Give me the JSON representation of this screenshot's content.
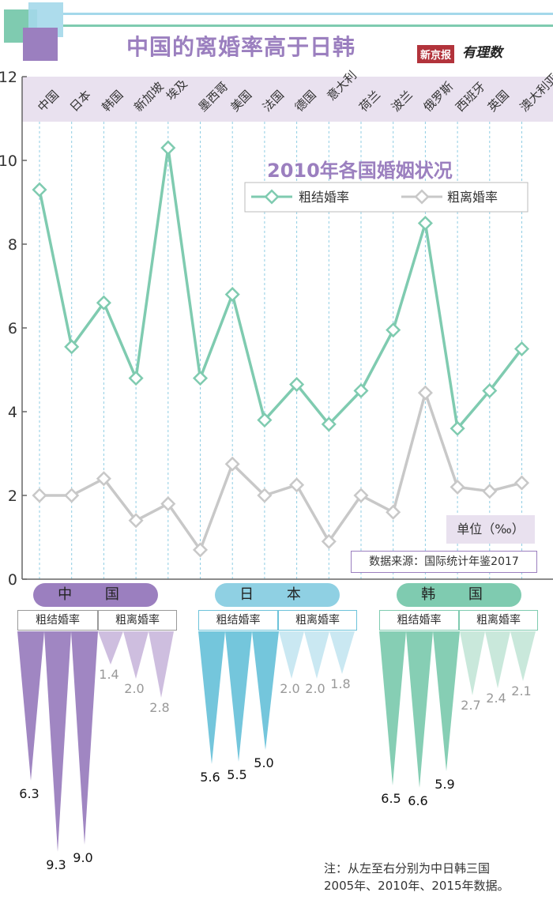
{
  "header": {
    "title": "中国的离婚率高于日韩",
    "logo_newspaper": "新京报",
    "logo_sub": "有理数"
  },
  "chart_data": [
    {
      "type": "line",
      "title": "2010年各国婚姻状况",
      "categories": [
        "中国",
        "日本",
        "韩国",
        "新加坡",
        "埃及",
        "墨西哥",
        "美国",
        "法国",
        "德国",
        "意大利",
        "荷兰",
        "波兰",
        "俄罗斯",
        "西班牙",
        "英国",
        "澳大利亚"
      ],
      "series": [
        {
          "name": "粗结婚率",
          "color": "#7fcbb0",
          "values": [
            9.3,
            5.55,
            6.6,
            4.8,
            10.3,
            4.8,
            6.8,
            3.8,
            4.65,
            3.7,
            4.5,
            5.95,
            8.5,
            3.6,
            4.5,
            5.5
          ]
        },
        {
          "name": "粗离婚率",
          "color": "#c8c8c8",
          "values": [
            2.0,
            2.0,
            2.4,
            1.4,
            1.8,
            0.7,
            2.75,
            2.0,
            2.25,
            0.9,
            2.0,
            1.6,
            4.45,
            2.2,
            2.1,
            2.3
          ]
        }
      ],
      "ylim": [
        0,
        12
      ],
      "yticks": [
        0,
        2,
        4,
        6,
        8,
        10,
        12
      ],
      "unit": "单位（‰）",
      "source": "数据来源：国际统计年鉴2017"
    },
    {
      "type": "bar",
      "title": "中日韩三国 2005年、2010年、2015年",
      "groups": [
        {
          "name": "中 国",
          "color": "#9b7fbf",
          "light": "#cbbbdd",
          "marriage_label": "粗结婚率",
          "divorce_label": "粗离婚率",
          "marriage": [
            "6.3",
            "9.3",
            "9.0"
          ],
          "divorce": [
            "1.4",
            "2.0",
            "2.8"
          ]
        },
        {
          "name": "日 本",
          "color": "#6dc3da",
          "light": "#c7e7f1",
          "marriage_label": "粗结婚率",
          "divorce_label": "粗离婚率",
          "marriage": [
            "5.6",
            "5.5",
            "5.0"
          ],
          "divorce": [
            "2.0",
            "2.0",
            "1.8"
          ]
        },
        {
          "name": "韩 国",
          "color": "#7fcbb0",
          "light": "#c6e7d9",
          "marriage_label": "粗结婚率",
          "divorce_label": "粗离婚率",
          "marriage": [
            "6.5",
            "6.6",
            "5.9"
          ],
          "divorce": [
            "2.7",
            "2.4",
            "2.1"
          ]
        }
      ]
    }
  ],
  "note": {
    "line1": "注：从左至右分别为中日韩三国",
    "line2": "2005年、2010年、2015年数据。"
  }
}
